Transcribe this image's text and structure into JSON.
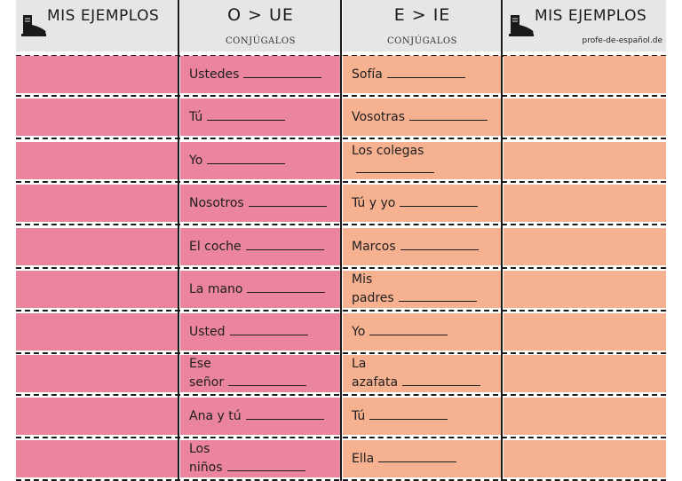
{
  "headers": {
    "left_examples": "MIS EJEMPLOS",
    "o_ue": "O > UE",
    "e_ie": "E > IE",
    "conjugate_left": "CONJÚGALOS",
    "conjugate_right": "CONJÚGALOS",
    "right_examples": "MIS EJEMPLOS",
    "credit": "profe-de-español.de"
  },
  "boot_icon": "boot-icon",
  "colors": {
    "header_bg": "#e6e6e6",
    "pink": "#ea859d",
    "peach": "#f6b191",
    "lines": "#1a1a1a"
  },
  "rows": [
    {
      "o_ue": "Ustedes",
      "e_ie": "Sofía"
    },
    {
      "o_ue": "Tú",
      "e_ie": "Vosotras"
    },
    {
      "o_ue": "Yo",
      "e_ie": "Los colegas"
    },
    {
      "o_ue": "Nosotros",
      "e_ie": "Tú y yo"
    },
    {
      "o_ue": "El coche",
      "e_ie": "Marcos"
    },
    {
      "o_ue": "La mano",
      "e_ie": "Mis\npadres"
    },
    {
      "o_ue": "Usted",
      "e_ie": "Yo"
    },
    {
      "o_ue": "Ese\nseñor",
      "e_ie": "La\nazafata"
    },
    {
      "o_ue": "Ana y tú",
      "e_ie": "Tú"
    },
    {
      "o_ue": "Los\nniños",
      "e_ie": "Ella"
    }
  ]
}
